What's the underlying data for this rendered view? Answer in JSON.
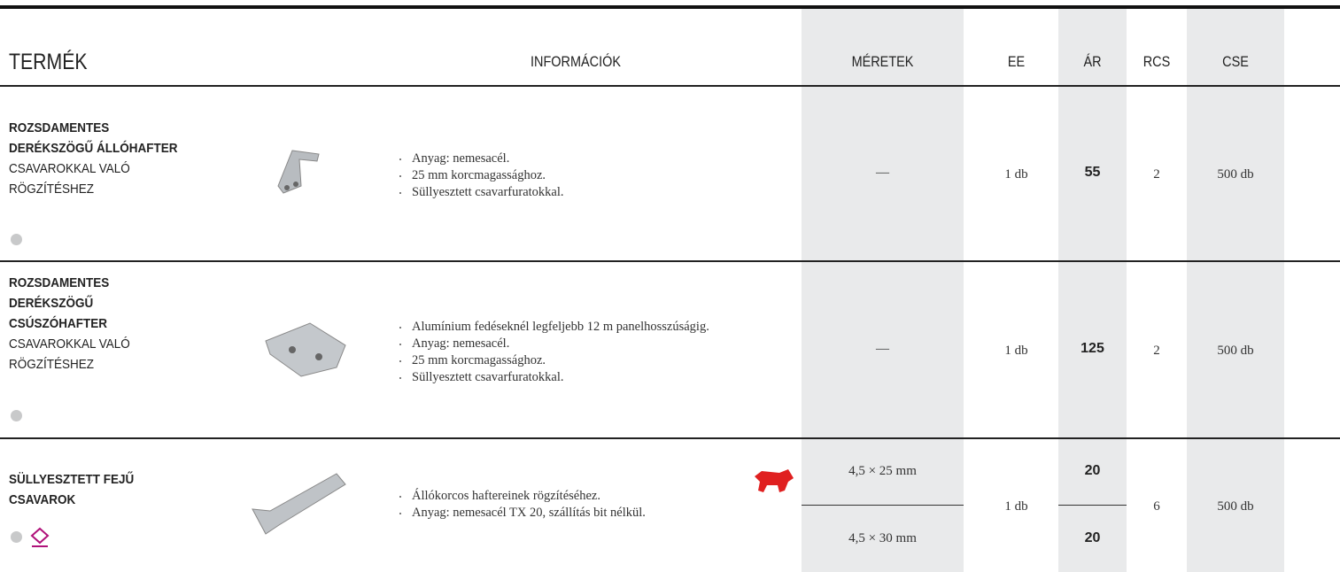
{
  "header": {
    "columns": [
      "TERMÉK",
      "INFORMÁCIÓK",
      "MÉRETEK",
      "EE",
      "ÁR",
      "RCS",
      "CSE"
    ]
  },
  "table": {
    "rows": [
      {
        "name_bold": [
          "ROZSDAMENTES",
          "DERÉKSZÖGŰ ÁLLÓHAFTER"
        ],
        "name_regular": [
          "CSAVAROKKAL VALÓ",
          "RÖGZÍTÉSHEZ"
        ],
        "info": [
          "Anyag: nemesacél.",
          "25 mm korcmagassághoz.",
          "Süllyesztett csavarfuratokkal."
        ],
        "dimensions": [
          "—"
        ],
        "ee": "1 db",
        "prices": [
          55
        ],
        "rcs": 2,
        "cse": "500 db"
      },
      {
        "name_bold": [
          "ROZSDAMENTES",
          "DERÉKSZÖGŰ",
          "CSÚSZÓHAFTER"
        ],
        "name_regular": [
          "CSAVAROKKAL VALÓ",
          "RÖGZÍTÉSHEZ"
        ],
        "info": [
          "Alumínium fedéseknél legfeljebb 12 m panelhosszúságig.",
          "Anyag: nemesacél.",
          "25 mm korcmagassághoz.",
          "Süllyesztett csavarfuratokkal."
        ],
        "dimensions": [
          "—"
        ],
        "ee": "1 db",
        "prices": [
          125
        ],
        "rcs": 2,
        "cse": "500 db"
      },
      {
        "name_bold": [
          "SÜLLYESZTETT FEJŰ",
          "CSAVAROK"
        ],
        "name_regular": [],
        "info": [
          "Állókorcos haftereinek rögzítéséhez.",
          "Anyag: nemesacél TX 20, szállítás bit nélkül."
        ],
        "dimensions": [
          "4,5 × 25 mm",
          "4,5 × 30 mm"
        ],
        "ee": "1 db",
        "prices": [
          20,
          20
        ],
        "rcs": 6,
        "cse": "500 db"
      }
    ]
  }
}
